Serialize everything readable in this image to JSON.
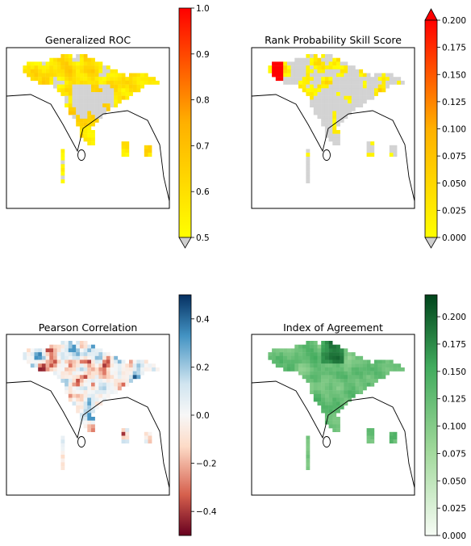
{
  "chart_data": [
    {
      "type": "heatmap",
      "title": "Generalized ROC",
      "region": "south-asia",
      "colormap": [
        "#ffff00",
        "#ffb000",
        "#ff0000"
      ],
      "mask_color": "#d3d3d3",
      "colorbar": {
        "vmin": 0.5,
        "vmax": 1.0,
        "ticks": [
          "0.5",
          "0.6",
          "0.7",
          "0.8",
          "0.9",
          "1.0"
        ],
        "extend": "min"
      },
      "style": "roc"
    },
    {
      "type": "heatmap",
      "title": "Rank Probability Skill Score",
      "region": "south-asia",
      "colormap": [
        "#ffff00",
        "#ffb000",
        "#ff0000"
      ],
      "mask_color": "#d3d3d3",
      "colorbar": {
        "vmin": 0.0,
        "vmax": 0.2,
        "ticks": [
          "0.000",
          "0.025",
          "0.050",
          "0.075",
          "0.100",
          "0.125",
          "0.150",
          "0.175",
          "0.200"
        ],
        "extend": "both"
      },
      "style": "rpss"
    },
    {
      "type": "heatmap",
      "title": "Pearson Correlation",
      "region": "south-asia",
      "colormap": [
        "#67001f",
        "#d6604d",
        "#fddbc7",
        "#f7f7f7",
        "#d1e5f0",
        "#4393c3",
        "#053061"
      ],
      "colorbar": {
        "vmin": -0.5,
        "vmax": 0.5,
        "ticks": [
          "−0.4",
          "−0.2",
          "0.0",
          "0.2",
          "0.4"
        ],
        "tick_values": [
          -0.4,
          -0.2,
          0.0,
          0.2,
          0.4
        ],
        "extend": "neither"
      },
      "style": "corr"
    },
    {
      "type": "heatmap",
      "title": "Index of Agreement",
      "region": "south-asia",
      "colormap": [
        "#f7fcf5",
        "#a1d99b",
        "#41ab5d",
        "#00441b"
      ],
      "colorbar": {
        "vmin": 0.0,
        "vmax": 0.22,
        "ticks": [
          "0.000",
          "0.025",
          "0.050",
          "0.075",
          "0.100",
          "0.125",
          "0.150",
          "0.175",
          "0.200"
        ],
        "tick_values": [
          0,
          0.025,
          0.05,
          0.075,
          0.1,
          0.125,
          0.15,
          0.175,
          0.2
        ],
        "extend": "neither"
      },
      "style": "ioa"
    }
  ]
}
